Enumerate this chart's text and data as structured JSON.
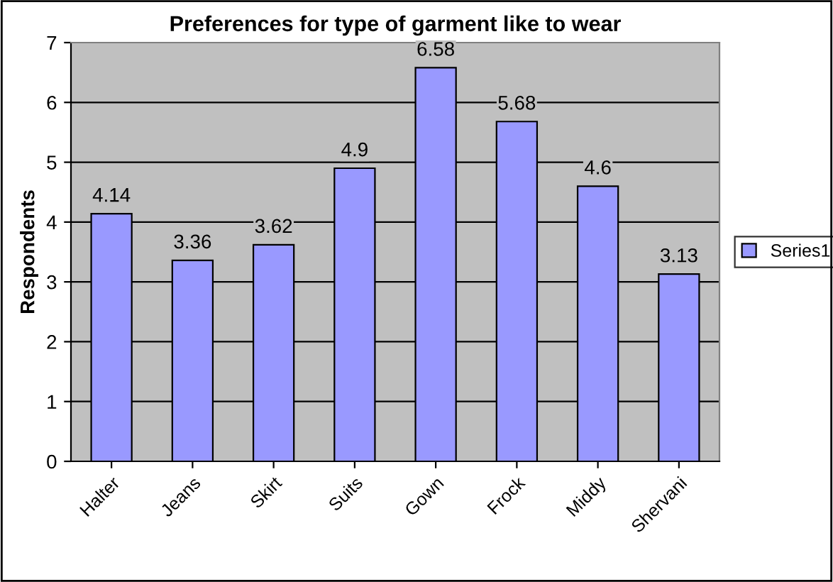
{
  "chart_data": {
    "type": "bar",
    "title": "Preferences for type of garment like to wear",
    "ylabel": "Respondents",
    "categories": [
      "Halter",
      "Jeans",
      "Skirt",
      "Suits",
      "Gown",
      "Frock",
      "Middy",
      "Shervani"
    ],
    "series": [
      {
        "name": "Series1",
        "color": "#9999ff",
        "values": [
          4.14,
          3.36,
          3.62,
          4.9,
          6.58,
          5.68,
          4.6,
          3.13
        ]
      }
    ],
    "ylim": [
      0,
      7
    ],
    "yticks": [
      0,
      1,
      2,
      3,
      4,
      5,
      6,
      7
    ],
    "grid": "y",
    "legend": "right",
    "data_labels": true
  }
}
